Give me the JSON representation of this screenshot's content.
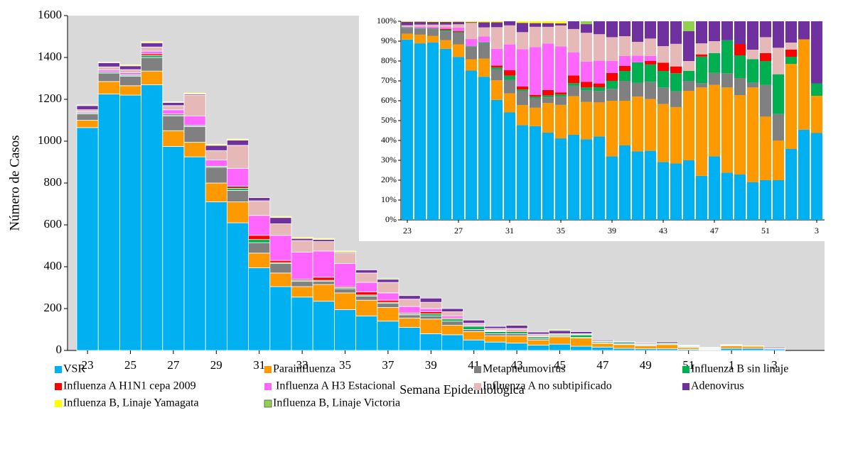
{
  "chart_data": [
    {
      "type": "stacked_bar",
      "y_label": "Número de Casos",
      "x_label": "Semana Epidemiológica",
      "categories": [
        "23",
        null,
        "25",
        null,
        "27",
        null,
        "29",
        null,
        "31",
        null,
        "33",
        null,
        "35",
        null,
        "37",
        null,
        "39",
        null,
        "41",
        null,
        "43",
        null,
        "45",
        null,
        "47",
        null,
        "49",
        null,
        "51",
        null,
        "1",
        null,
        "3"
      ],
      "ylim": [
        0,
        1600
      ],
      "yticks": [
        0,
        200,
        400,
        600,
        800,
        1000,
        1200,
        1400,
        1600
      ],
      "series": [
        {
          "name": "VSR",
          "color": "#00b0f0",
          "values": [
            1065,
            1225,
            1220,
            1270,
            975,
            925,
            710,
            610,
            395,
            305,
            255,
            235,
            195,
            165,
            140,
            110,
            80,
            75,
            50,
            40,
            35,
            25,
            30,
            20,
            16,
            10,
            8,
            8,
            5,
            3,
            10,
            10,
            7
          ]
        },
        {
          "name": "Parainfluenza",
          "color": "#ff9900",
          "values": [
            35,
            60,
            45,
            65,
            75,
            70,
            90,
            100,
            70,
            65,
            50,
            80,
            80,
            75,
            65,
            45,
            70,
            45,
            40,
            30,
            35,
            25,
            35,
            40,
            18,
            18,
            14,
            20,
            8,
            3,
            12,
            10,
            3
          ]
        },
        {
          "name": "Metapneumovirus",
          "color": "#808080",
          "values": [
            30,
            40,
            45,
            65,
            70,
            75,
            75,
            55,
            50,
            45,
            25,
            15,
            20,
            20,
            20,
            15,
            15,
            20,
            10,
            10,
            10,
            7,
            5,
            2,
            3,
            3,
            3,
            1,
            4,
            2,
            0,
            0,
            0
          ]
        },
        {
          "name": "Influenza B sin linaje",
          "color": "#00b050",
          "values": [
            5,
            5,
            5,
            10,
            5,
            5,
            5,
            10,
            15,
            5,
            5,
            5,
            5,
            5,
            5,
            5,
            10,
            10,
            15,
            10,
            10,
            8,
            5,
            12,
            5,
            7,
            4,
            5,
            3,
            3,
            1,
            0,
            1
          ]
        },
        {
          "name": "Influenza A H1N1 cepa 2009",
          "color": "#ff0000",
          "values": [
            0,
            0,
            2,
            8,
            5,
            0,
            0,
            10,
            20,
            10,
            5,
            15,
            5,
            15,
            10,
            5,
            10,
            5,
            0,
            2,
            5,
            3,
            0,
            1,
            0,
            0,
            2,
            0,
            1,
            0,
            1,
            0,
            0
          ]
        },
        {
          "name": " Influenza A H3 Estacional",
          "color": "#ff66ff",
          "values": [
            5,
            10,
            10,
            12,
            20,
            45,
            30,
            85,
            95,
            120,
            130,
            125,
            110,
            45,
            35,
            30,
            15,
            10,
            5,
            3,
            0,
            0,
            0,
            0,
            0,
            0,
            0,
            0,
            0,
            0,
            0,
            0,
            0
          ]
        },
        {
          "name": "Influenza A no subtipificado",
          "color": "#e6b9b8",
          "values": [
            10,
            15,
            15,
            20,
            20,
            100,
            45,
            110,
            70,
            55,
            55,
            45,
            50,
            45,
            50,
            35,
            30,
            20,
            10,
            10,
            10,
            10,
            5,
            5,
            3,
            0,
            0,
            2,
            2,
            2,
            1,
            0,
            0
          ]
        },
        {
          "name": "Adenovirus",
          "color": "#7030a0",
          "values": [
            20,
            20,
            18,
            20,
            15,
            5,
            25,
            25,
            15,
            30,
            10,
            10,
            5,
            15,
            15,
            17,
            20,
            15,
            15,
            10,
            15,
            10,
            15,
            10,
            5,
            4,
            4,
            6,
            2,
            2,
            3,
            2,
            5
          ]
        },
        {
          "name": "Influenza B, Linaje Yamagata",
          "color": "#ffff00",
          "values": [
            3,
            3,
            5,
            5,
            3,
            5,
            5,
            5,
            0,
            5,
            5,
            5,
            5,
            0,
            0,
            0,
            0,
            0,
            0,
            0,
            0,
            0,
            0,
            0,
            0,
            0,
            0,
            0,
            0,
            0,
            0,
            0,
            0
          ]
        },
        {
          "name": "Influenza B, Linaje Victoria",
          "color": "#92d050",
          "values": [
            0,
            0,
            0,
            0,
            0,
            0,
            0,
            0,
            0,
            0,
            0,
            0,
            0,
            0,
            5,
            0,
            0,
            0,
            0,
            0,
            0,
            0,
            5,
            0,
            0,
            0,
            0,
            0,
            0,
            0,
            0,
            0,
            0
          ]
        }
      ]
    },
    {
      "type": "stacked_percent",
      "categories": [
        "23",
        null,
        null,
        null,
        "27",
        null,
        null,
        null,
        "31",
        null,
        null,
        null,
        "35",
        null,
        null,
        null,
        "39",
        null,
        null,
        null,
        "43",
        null,
        null,
        null,
        "47",
        null,
        null,
        null,
        "51",
        null,
        null,
        null,
        "3"
      ],
      "ylim": [
        0,
        100
      ],
      "yticks": [
        {
          "value": 0,
          "label": "0%"
        },
        {
          "value": 10,
          "label": "10%"
        },
        {
          "value": 20,
          "label": "20%"
        },
        {
          "value": 30,
          "label": "30%"
        },
        {
          "value": 40,
          "label": "40%"
        },
        {
          "value": 50,
          "label": "50%"
        },
        {
          "value": 60,
          "label": "60%"
        },
        {
          "value": 70,
          "label": "70%"
        },
        {
          "value": 80,
          "label": "80%"
        },
        {
          "value": 90,
          "label": "90%"
        },
        {
          "value": 100,
          "label": "100%"
        }
      ]
    }
  ]
}
